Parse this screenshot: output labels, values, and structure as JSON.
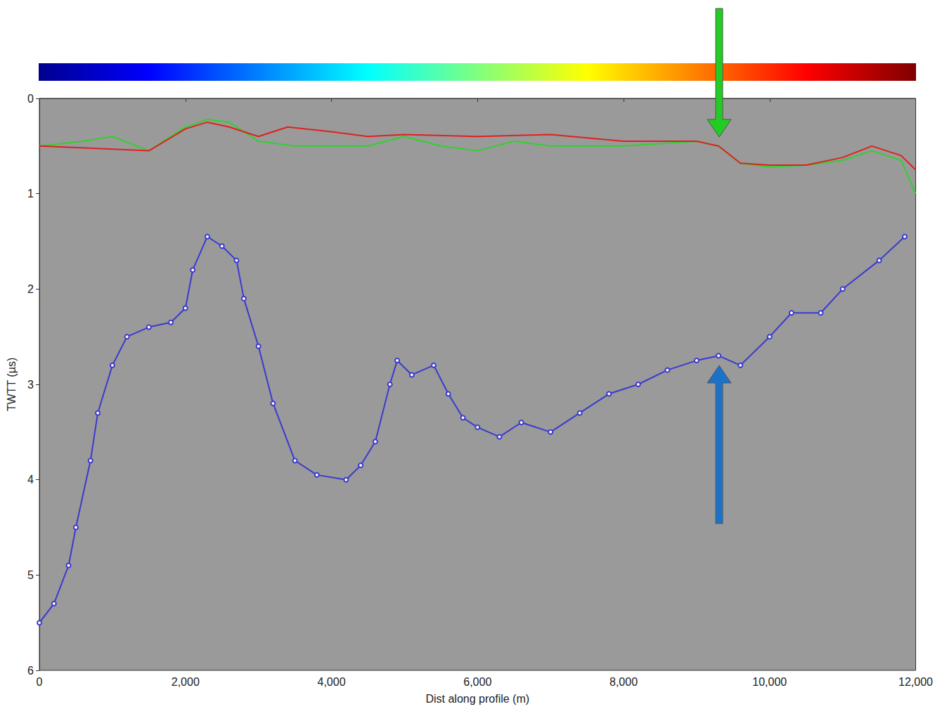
{
  "chart_data": {
    "type": "line",
    "xlabel": "Dist along profile (m)",
    "ylabel": "TWTT (µs)",
    "xlim": [
      0,
      12000
    ],
    "xticks": [
      0,
      2000,
      4000,
      6000,
      8000,
      10000,
      12000
    ],
    "ylim": [
      0,
      6
    ],
    "yticks": [
      0,
      1,
      2,
      3,
      4,
      5,
      6
    ],
    "grid": false,
    "series": [
      {
        "color": "#2fd12f",
        "marker": "none",
        "line_style": "solid",
        "x": [
          0,
          600,
          1000,
          1500,
          2000,
          2300,
          2600,
          3000,
          3500,
          4000,
          4500,
          5000,
          5500,
          6000,
          6500,
          7000,
          8000,
          9000,
          9300,
          9600,
          10000,
          10500,
          11000,
          11400,
          11800,
          12000
        ],
        "values": [
          0.5,
          0.45,
          0.4,
          0.55,
          0.3,
          0.22,
          0.25,
          0.45,
          0.5,
          0.5,
          0.5,
          0.4,
          0.5,
          0.55,
          0.45,
          0.5,
          0.5,
          0.45,
          0.5,
          0.68,
          0.72,
          0.7,
          0.65,
          0.55,
          0.65,
          1.0
        ]
      },
      {
        "color": "#e02020",
        "marker": "none",
        "line_style": "solid",
        "x": [
          0,
          1500,
          2000,
          2300,
          2600,
          3000,
          3400,
          4000,
          4500,
          5000,
          6000,
          7000,
          8000,
          9000,
          9300,
          9600,
          10000,
          10500,
          11000,
          11400,
          11800,
          12000
        ],
        "values": [
          0.5,
          0.55,
          0.32,
          0.25,
          0.3,
          0.4,
          0.3,
          0.35,
          0.4,
          0.38,
          0.4,
          0.38,
          0.45,
          0.45,
          0.5,
          0.68,
          0.7,
          0.7,
          0.62,
          0.5,
          0.6,
          0.75
        ]
      },
      {
        "color": "#3a3ad0",
        "marker": "circle",
        "line_style": "solid",
        "x": [
          0,
          200,
          400,
          500,
          700,
          800,
          1000,
          1200,
          1500,
          1800,
          2000,
          2100,
          2300,
          2500,
          2700,
          2800,
          3000,
          3200,
          3500,
          3800,
          4200,
          4400,
          4600,
          4800,
          4900,
          5100,
          5400,
          5600,
          5800,
          6000,
          6300,
          6600,
          7000,
          7400,
          7800,
          8200,
          8600,
          9000,
          9300,
          9600,
          10000,
          10300,
          10700,
          11000,
          11500,
          11850
        ],
        "values": [
          5.5,
          5.3,
          4.9,
          4.5,
          3.8,
          3.3,
          2.8,
          2.5,
          2.4,
          2.35,
          2.2,
          1.8,
          1.45,
          1.55,
          1.7,
          2.1,
          2.6,
          3.2,
          3.8,
          3.95,
          4.0,
          3.85,
          3.6,
          3.0,
          2.75,
          2.9,
          2.8,
          3.1,
          3.35,
          3.45,
          3.55,
          3.4,
          3.5,
          3.3,
          3.1,
          3.0,
          2.85,
          2.75,
          2.7,
          2.8,
          2.5,
          2.25,
          2.25,
          2.0,
          1.7,
          1.45
        ]
      }
    ]
  }
}
